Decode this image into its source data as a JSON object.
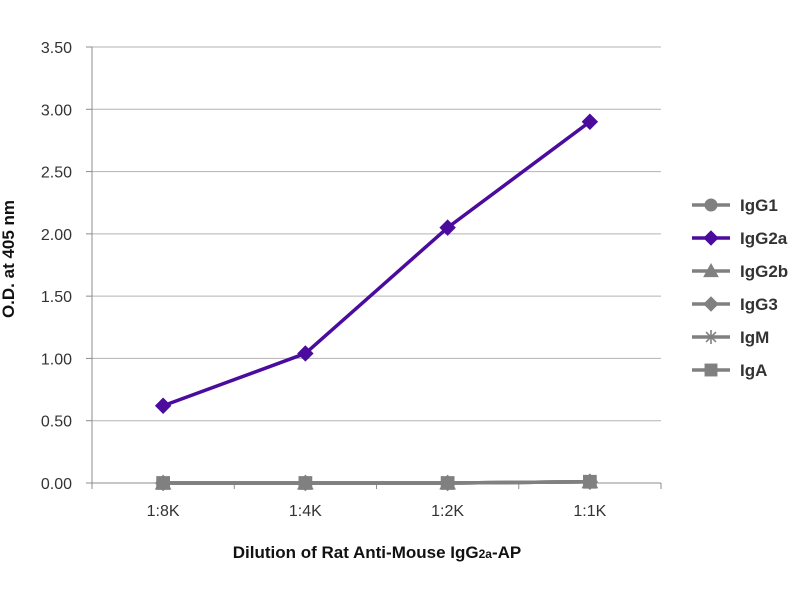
{
  "chart_data": {
    "type": "line",
    "title": "",
    "xlabel": "Dilution of Rat Anti-Mouse IgG2a-AP",
    "xlabel_parts": {
      "main": "Dilution of Rat Anti-Mouse IgG",
      "sub": "2a",
      "suffix": "-AP"
    },
    "ylabel": "O.D. at 405 nm",
    "categories": [
      "1:8K",
      "1:4K",
      "1:2K",
      "1:1K"
    ],
    "ylim": [
      0,
      3.5
    ],
    "yticks": [
      "0.00",
      "0.50",
      "1.00",
      "1.50",
      "2.00",
      "2.50",
      "3.00",
      "3.50"
    ],
    "grid": "horizontal",
    "legend_position": "right",
    "series": [
      {
        "name": "IgG1",
        "values": [
          0.0,
          0.0,
          0.0,
          0.01
        ],
        "color": "#808080",
        "marker": "circle"
      },
      {
        "name": "IgG2a",
        "values": [
          0.62,
          1.04,
          2.05,
          2.9
        ],
        "color": "#4B0C9E",
        "marker": "diamond"
      },
      {
        "name": "IgG2b",
        "values": [
          0.0,
          0.0,
          0.0,
          0.01
        ],
        "color": "#808080",
        "marker": "triangle"
      },
      {
        "name": "IgG3",
        "values": [
          0.0,
          0.0,
          0.0,
          0.01
        ],
        "color": "#808080",
        "marker": "diamond"
      },
      {
        "name": "IgM",
        "values": [
          0.0,
          0.0,
          0.0,
          0.01
        ],
        "color": "#808080",
        "marker": "star"
      },
      {
        "name": "IgA",
        "values": [
          0.0,
          0.0,
          0.0,
          0.01
        ],
        "color": "#808080",
        "marker": "square"
      }
    ]
  }
}
